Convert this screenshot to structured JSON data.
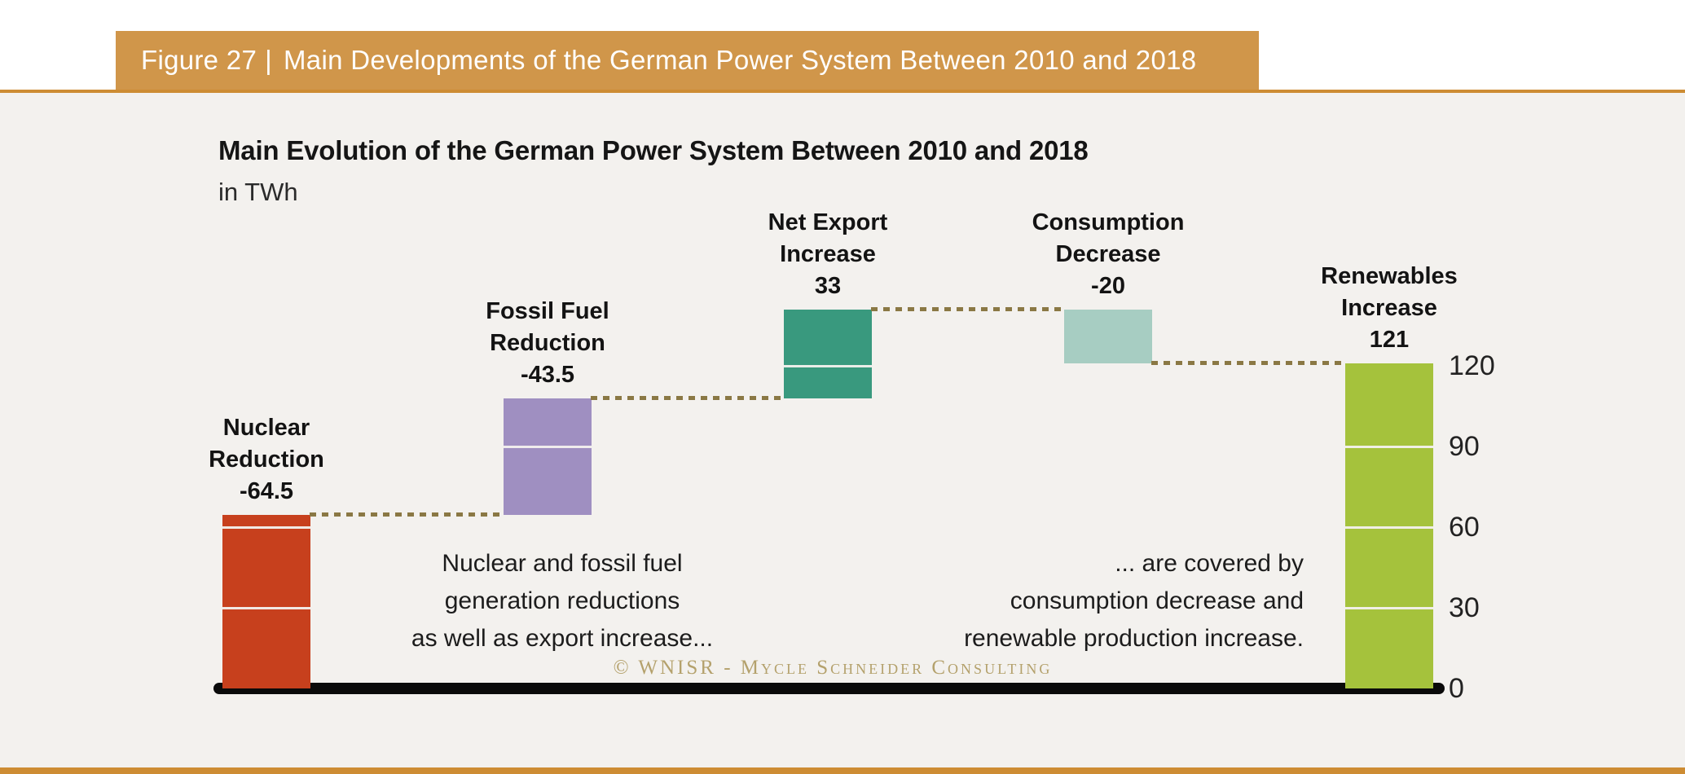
{
  "figure_header": {
    "label": "Figure 27",
    "separator": "|",
    "title": "Main Developments of the German Power System Between 2010 and 2018"
  },
  "colors": {
    "band": "#d0964a",
    "rule": "#cd8c33",
    "background": "#f3f1ee",
    "baseline": "#0a0a0a",
    "connector": "#8a7844",
    "copyright": "#b4a16c"
  },
  "chart_data": {
    "type": "bar",
    "variant": "waterfall",
    "title": "Main Evolution of the German Power System Between 2010 and 2018",
    "subtitle": "in TWh",
    "unit": "TWh",
    "ylim": [
      0,
      141
    ],
    "yticks": [
      0,
      30,
      60,
      90,
      120
    ],
    "yticks_position": "right",
    "grid": "white-lines-inside-bars",
    "bars": [
      {
        "name_lines": [
          "Nuclear",
          "Reduction"
        ],
        "value_label": "-64.5",
        "value": -64.5,
        "start": 0,
        "end": 64.5,
        "color": "#c7401d"
      },
      {
        "name_lines": [
          "Fossil Fuel",
          "Reduction"
        ],
        "value_label": "-43.5",
        "value": -43.5,
        "start": 64.5,
        "end": 108,
        "color": "#9f8fc1"
      },
      {
        "name_lines": [
          "Net Export",
          "Increase"
        ],
        "value_label": "33",
        "value": 33,
        "start": 108,
        "end": 141,
        "color": "#39997e"
      },
      {
        "name_lines": [
          "Consumption",
          "Decrease"
        ],
        "value_label": "-20",
        "value": -20,
        "start": 141,
        "end": 121,
        "color": "#a7cdc2"
      },
      {
        "name_lines": [
          "Renewables",
          "Increase"
        ],
        "value_label": "121",
        "value": 121,
        "start": 121,
        "end": 0,
        "color": "#a5c23c"
      }
    ],
    "annotations": [
      {
        "lines": [
          "Nuclear and fossil fuel",
          "generation reductions",
          "as well as export increase..."
        ]
      },
      {
        "lines": [
          "... are covered by",
          "consumption decrease and",
          "renewable production increase."
        ]
      }
    ],
    "copyright": "© WNISR - Mycle Schneider Consulting"
  }
}
